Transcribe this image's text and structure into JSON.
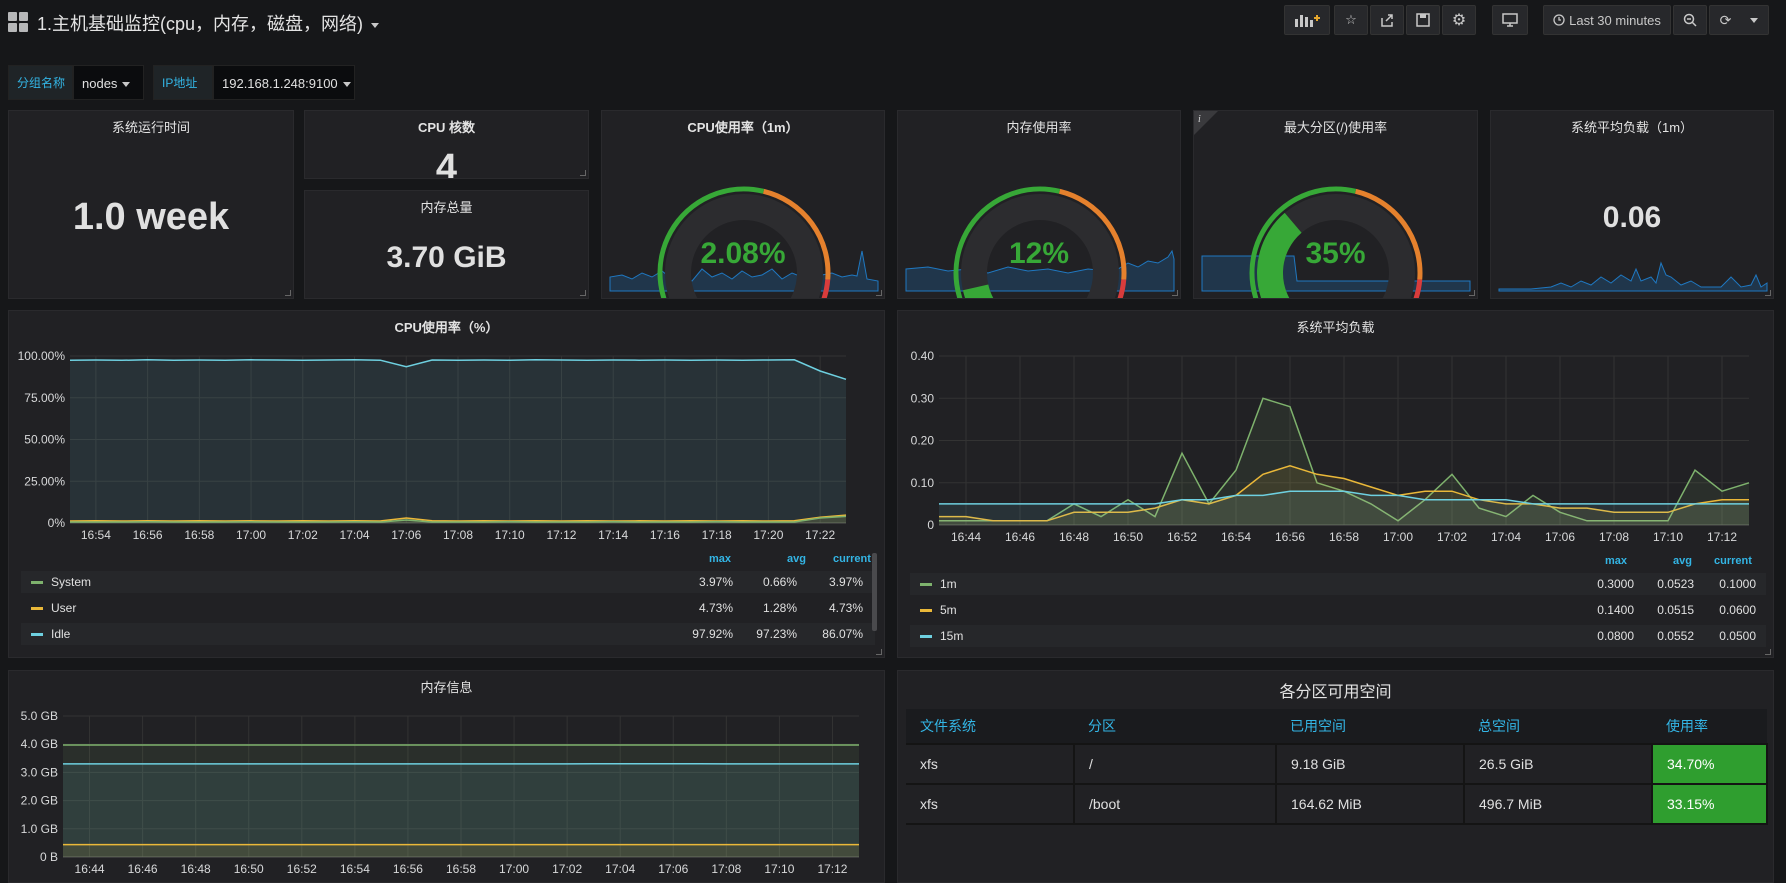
{
  "header": {
    "title": "1.主机基础监控(cpu，内存，磁盘，网络)",
    "time_range": "Last 30 minutes"
  },
  "variables": [
    {
      "label": "分组名称",
      "value": "nodes"
    },
    {
      "label": "IP地址",
      "value": "192.168.1.248:9100"
    }
  ],
  "stats": {
    "uptime": {
      "title": "系统运行时间",
      "value": "1.0 week"
    },
    "cpu_cores": {
      "title": "CPU 核数",
      "value": "4"
    },
    "mem_total": {
      "title": "内存总量",
      "value": "3.70 GiB"
    },
    "cpu_usage": {
      "title": "CPU使用率（1m）",
      "value": "2.08%",
      "percent": 2.08
    },
    "mem_usage": {
      "title": "内存使用率",
      "value": "12%",
      "percent": 12
    },
    "disk_usage": {
      "title": "最大分区(/)使用率",
      "value": "35%",
      "percent": 35
    },
    "load_avg": {
      "title": "系统平均负载（1m）",
      "value": "0.06"
    }
  },
  "colors": {
    "green": "#37a837",
    "orange": "#e5812d",
    "red": "#d83c3c",
    "blue": "#1f78c1",
    "series_green": "#7eb26d",
    "series_yellow": "#eab839",
    "series_cyan": "#6ed0e0"
  },
  "cpu_chart": {
    "title": "CPU使用率（%）",
    "legend_headers": {
      "max": "max",
      "avg": "avg",
      "current": "current"
    },
    "legend": [
      {
        "name": "System",
        "max": "3.97%",
        "avg": "0.66%",
        "current": "3.97%"
      },
      {
        "name": "User",
        "max": "4.73%",
        "avg": "1.28%",
        "current": "4.73%"
      },
      {
        "name": "Idle",
        "max": "97.92%",
        "avg": "97.23%",
        "current": "86.07%"
      }
    ]
  },
  "load_chart": {
    "title": "系统平均负载",
    "legend_headers": {
      "max": "max",
      "avg": "avg",
      "current": "current"
    },
    "legend": [
      {
        "name": "1m",
        "max": "0.3000",
        "avg": "0.0523",
        "current": "0.1000"
      },
      {
        "name": "5m",
        "max": "0.1400",
        "avg": "0.0515",
        "current": "0.0600"
      },
      {
        "name": "15m",
        "max": "0.0800",
        "avg": "0.0552",
        "current": "0.0500"
      }
    ]
  },
  "mem_chart": {
    "title": "内存信息"
  },
  "fs_table": {
    "title": "各分区可用空间",
    "headers": [
      "文件系统",
      "分区",
      "已用空间",
      "总空间",
      "使用率"
    ],
    "rows": [
      [
        "xfs",
        "/",
        "9.18 GiB",
        "26.5 GiB",
        "34.70%"
      ],
      [
        "xfs",
        "/boot",
        "164.62 MiB",
        "496.7 MiB",
        "33.15%"
      ]
    ]
  },
  "chart_data": [
    {
      "type": "line",
      "title": "CPU使用率（%）",
      "x": [
        "16:53",
        "16:54",
        "16:55",
        "16:56",
        "16:57",
        "16:58",
        "16:59",
        "17:00",
        "17:01",
        "17:02",
        "17:03",
        "17:04",
        "17:05",
        "17:06",
        "17:07",
        "17:08",
        "17:09",
        "17:10",
        "17:11",
        "17:12",
        "17:13",
        "17:14",
        "17:15",
        "17:16",
        "17:17",
        "17:18",
        "17:19",
        "17:20",
        "17:21",
        "17:22",
        "17:23"
      ],
      "x_ticks": [
        "16:54",
        "16:56",
        "16:58",
        "17:00",
        "17:02",
        "17:04",
        "17:06",
        "17:08",
        "17:10",
        "17:12",
        "17:14",
        "17:16",
        "17:18",
        "17:20",
        "17:22"
      ],
      "y_ticks": [
        "100.00%",
        "75.00%",
        "50.00%",
        "25.00%",
        "0%"
      ],
      "ylim": [
        0,
        100
      ],
      "series": [
        {
          "name": "Idle",
          "values": [
            97.5,
            97.6,
            97.4,
            97.7,
            97.5,
            97.6,
            97.5,
            97.7,
            97.6,
            97.5,
            97.6,
            97.7,
            97.5,
            93.6,
            97.6,
            97.5,
            97.6,
            97.5,
            97.7,
            97.6,
            97.5,
            97.6,
            97.5,
            97.6,
            97.5,
            97.6,
            97.5,
            97.6,
            97.7,
            91.0,
            86.07
          ]
        },
        {
          "name": "User",
          "values": [
            1.2,
            1.3,
            1.2,
            1.3,
            1.2,
            1.3,
            1.2,
            1.3,
            1.2,
            1.3,
            1.2,
            1.3,
            1.2,
            3.0,
            1.3,
            1.2,
            1.3,
            1.2,
            1.3,
            1.2,
            1.3,
            1.2,
            1.3,
            1.2,
            1.3,
            1.2,
            1.3,
            1.2,
            1.3,
            3.5,
            4.73
          ]
        },
        {
          "name": "System",
          "values": [
            0.6,
            0.6,
            0.6,
            0.7,
            0.6,
            0.6,
            0.6,
            0.7,
            0.6,
            0.6,
            0.6,
            0.7,
            0.6,
            1.8,
            0.6,
            0.6,
            0.6,
            0.7,
            0.6,
            0.6,
            0.6,
            0.7,
            0.6,
            0.6,
            0.6,
            0.7,
            0.6,
            0.6,
            0.6,
            3.0,
            3.97
          ]
        }
      ]
    },
    {
      "type": "line",
      "title": "系统平均负载",
      "x": [
        "16:43",
        "16:44",
        "16:45",
        "16:46",
        "16:47",
        "16:48",
        "16:49",
        "16:50",
        "16:51",
        "16:52",
        "16:53",
        "16:54",
        "16:55",
        "16:56",
        "16:57",
        "16:58",
        "16:59",
        "17:00",
        "17:01",
        "17:02",
        "17:03",
        "17:04",
        "17:05",
        "17:06",
        "17:07",
        "17:08",
        "17:09",
        "17:10",
        "17:11",
        "17:12",
        "17:13"
      ],
      "x_ticks": [
        "16:44",
        "16:46",
        "16:48",
        "16:50",
        "16:52",
        "16:54",
        "16:56",
        "16:58",
        "17:00",
        "17:02",
        "17:04",
        "17:06",
        "17:08",
        "17:10",
        "17:12"
      ],
      "y_ticks": [
        "0.40",
        "0.30",
        "0.20",
        "0.10",
        "0"
      ],
      "ylim": [
        0,
        0.4
      ],
      "series": [
        {
          "name": "1m",
          "values": [
            0.01,
            0.01,
            0.01,
            0.01,
            0.01,
            0.05,
            0.02,
            0.06,
            0.02,
            0.17,
            0.05,
            0.13,
            0.3,
            0.28,
            0.1,
            0.08,
            0.05,
            0.01,
            0.06,
            0.12,
            0.04,
            0.02,
            0.07,
            0.03,
            0.01,
            0.01,
            0.01,
            0.01,
            0.13,
            0.08,
            0.1
          ]
        },
        {
          "name": "5m",
          "values": [
            0.02,
            0.02,
            0.01,
            0.01,
            0.01,
            0.03,
            0.03,
            0.03,
            0.04,
            0.06,
            0.05,
            0.07,
            0.12,
            0.14,
            0.12,
            0.11,
            0.09,
            0.07,
            0.08,
            0.08,
            0.06,
            0.05,
            0.05,
            0.04,
            0.04,
            0.03,
            0.03,
            0.03,
            0.05,
            0.06,
            0.06
          ]
        },
        {
          "name": "15m",
          "values": [
            0.05,
            0.05,
            0.05,
            0.05,
            0.05,
            0.05,
            0.05,
            0.05,
            0.05,
            0.06,
            0.06,
            0.07,
            0.07,
            0.08,
            0.08,
            0.08,
            0.07,
            0.07,
            0.06,
            0.06,
            0.06,
            0.06,
            0.05,
            0.05,
            0.05,
            0.05,
            0.05,
            0.05,
            0.05,
            0.05,
            0.05
          ]
        }
      ]
    },
    {
      "type": "area",
      "title": "内存信息",
      "x": [
        "16:43",
        "16:44",
        "16:45",
        "16:46",
        "16:47",
        "16:48",
        "16:49",
        "16:50",
        "16:51",
        "16:52",
        "16:53",
        "16:54",
        "16:55",
        "16:56",
        "16:57",
        "16:58",
        "16:59",
        "17:00",
        "17:01",
        "17:02",
        "17:03",
        "17:04",
        "17:05",
        "17:06",
        "17:07",
        "17:08",
        "17:09",
        "17:10",
        "17:11",
        "17:12",
        "17:13"
      ],
      "x_ticks": [
        "16:44",
        "16:46",
        "16:48",
        "16:50",
        "16:52",
        "16:54",
        "16:56",
        "16:58",
        "17:00",
        "17:02",
        "17:04",
        "17:06",
        "17:08",
        "17:10",
        "17:12"
      ],
      "y_ticks": [
        "5.0 GB",
        "4.0 GB",
        "3.0 GB",
        "2.0 GB",
        "1.0 GB",
        "0 B"
      ],
      "ylim": [
        0,
        5
      ],
      "series": [
        {
          "name": "",
          "color": "#7eb26d",
          "values": [
            3.97,
            3.97,
            3.97,
            3.97,
            3.97,
            3.97,
            3.97,
            3.97,
            3.97,
            3.97,
            3.97,
            3.97,
            3.97,
            3.97,
            3.97,
            3.97,
            3.97,
            3.97,
            3.97,
            3.97,
            3.97,
            3.97,
            3.97,
            3.97,
            3.97,
            3.97,
            3.97,
            3.97,
            3.97,
            3.97,
            3.97
          ]
        },
        {
          "name": "",
          "color": "#6ed0e0",
          "values": [
            3.3,
            3.3,
            3.3,
            3.3,
            3.3,
            3.3,
            3.3,
            3.3,
            3.3,
            3.3,
            3.3,
            3.3,
            3.3,
            3.3,
            3.3,
            3.3,
            3.3,
            3.3,
            3.3,
            3.3,
            3.31,
            3.31,
            3.31,
            3.31,
            3.31,
            3.3,
            3.3,
            3.3,
            3.3,
            3.3,
            3.3
          ]
        },
        {
          "name": "",
          "color": "#eab839",
          "values": [
            0.44,
            0.44,
            0.44,
            0.44,
            0.44,
            0.44,
            0.44,
            0.44,
            0.44,
            0.44,
            0.44,
            0.44,
            0.44,
            0.44,
            0.44,
            0.44,
            0.44,
            0.44,
            0.44,
            0.44,
            0.44,
            0.44,
            0.44,
            0.44,
            0.44,
            0.44,
            0.44,
            0.44,
            0.44,
            0.44,
            0.44
          ]
        }
      ]
    }
  ]
}
